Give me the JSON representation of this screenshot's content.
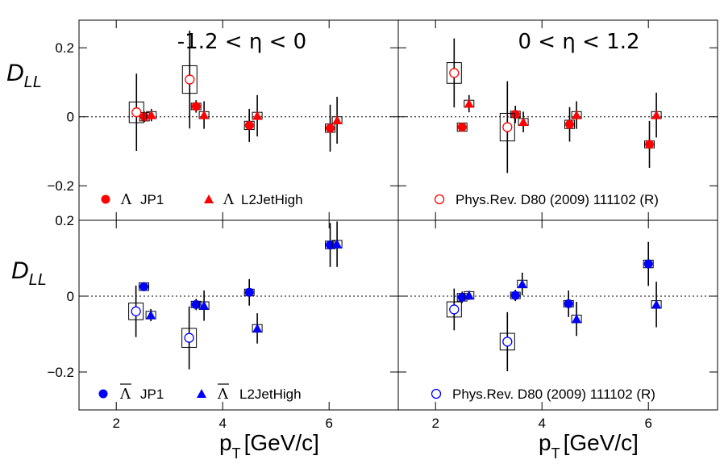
{
  "chart_data": {
    "type": "scatter",
    "y_axis_label": "D",
    "y_axis_label_sub": "LL",
    "x_axis_label": "p",
    "x_axis_label_sub": "T",
    "x_axis_unit": "[GeV/c]",
    "xlim": [
      1.3,
      7.3
    ],
    "x_ticks": [
      2,
      4,
      6
    ],
    "y_ticks": [
      -0.2,
      0,
      0.2
    ],
    "y_tick_labels": [
      "−0.2",
      "0",
      "0.2"
    ],
    "eta_ranges": [
      "-1.2 < η < 0",
      "0 < η < 1.2"
    ],
    "legend": {
      "jp1_label": "JP1",
      "l2_label": "L2JetHigh",
      "lambda_symbol": "Λ",
      "prev_label": "Phys.Rev. D80 (2009) 111102 (R)"
    },
    "colors": {
      "lambda": "#ff0000",
      "antilambda": "#0000ff",
      "box": "#000000"
    },
    "panels": [
      {
        "row": "top",
        "particle": "lambda",
        "eta": "-1.2 < η < 0",
        "ylim": [
          -0.3,
          0.28
        ],
        "series": [
          {
            "name": "Λ JP1",
            "marker": "circle-filled",
            "points": [
              {
                "x": 2.53,
                "y": 0.0,
                "err": 0.015,
                "sys": 0.012
              },
              {
                "x": 3.5,
                "y": 0.03,
                "err": 0.018,
                "sys": 0.008
              },
              {
                "x": 4.5,
                "y": -0.025,
                "err": 0.048,
                "sys": 0.012
              },
              {
                "x": 6.02,
                "y": -0.033,
                "err": 0.068,
                "sys": 0.012
              }
            ]
          },
          {
            "name": "Λ L2JetHigh",
            "marker": "triangle-filled",
            "points": [
              {
                "x": 2.66,
                "y": 0.005,
                "err": 0.018,
                "sys": 0.01
              },
              {
                "x": 3.65,
                "y": 0.005,
                "err": 0.04,
                "sys": 0.01
              },
              {
                "x": 4.65,
                "y": 0.003,
                "err": 0.06,
                "sys": 0.01
              },
              {
                "x": 6.15,
                "y": -0.01,
                "err": 0.068,
                "sys": 0.01
              }
            ]
          },
          {
            "name": "Phys.Rev. D80 (2009) 111102 (R)",
            "marker": "circle-open",
            "points": [
              {
                "x": 2.38,
                "y": 0.013,
                "err": 0.112,
                "sys": 0.03
              },
              {
                "x": 3.38,
                "y": 0.108,
                "err": 0.142,
                "sys": 0.04
              }
            ]
          }
        ]
      },
      {
        "row": "top",
        "particle": "lambda",
        "eta": "0 < η < 1.2",
        "ylim": [
          -0.3,
          0.28
        ],
        "series": [
          {
            "name": "Λ JP1",
            "marker": "circle-filled",
            "points": [
              {
                "x": 2.5,
                "y": -0.03,
                "err": 0.012,
                "sys": 0.012
              },
              {
                "x": 3.5,
                "y": 0.007,
                "err": 0.025,
                "sys": 0.008
              },
              {
                "x": 4.52,
                "y": -0.022,
                "err": 0.05,
                "sys": 0.012
              },
              {
                "x": 6.02,
                "y": -0.08,
                "err": 0.068,
                "sys": 0.01
              }
            ]
          },
          {
            "name": "Λ L2JetHigh",
            "marker": "triangle-filled",
            "points": [
              {
                "x": 2.63,
                "y": 0.038,
                "err": 0.025,
                "sys": 0.01
              },
              {
                "x": 3.65,
                "y": -0.015,
                "err": 0.03,
                "sys": 0.01
              },
              {
                "x": 4.65,
                "y": 0.005,
                "err": 0.04,
                "sys": 0.01
              },
              {
                "x": 6.15,
                "y": 0.005,
                "err": 0.065,
                "sys": 0.01
              }
            ]
          },
          {
            "name": "Phys.Rev. D80 (2009) 111102 (R)",
            "marker": "circle-open",
            "points": [
              {
                "x": 2.35,
                "y": 0.127,
                "err": 0.1,
                "sys": 0.03
              },
              {
                "x": 3.35,
                "y": -0.03,
                "err": 0.133,
                "sys": 0.04
              }
            ]
          }
        ]
      },
      {
        "row": "bottom",
        "particle": "antilambda",
        "eta": "-1.2 < η < 0",
        "ylim": [
          -0.3,
          0.2
        ],
        "series": [
          {
            "name": "anti-Λ JP1",
            "marker": "circle-filled",
            "points": [
              {
                "x": 2.52,
                "y": 0.025,
                "err": 0.012,
                "sys": 0.01
              },
              {
                "x": 3.5,
                "y": -0.022,
                "err": 0.015,
                "sys": 0.008
              },
              {
                "x": 4.5,
                "y": 0.01,
                "err": 0.035,
                "sys": 0.008
              },
              {
                "x": 6.02,
                "y": 0.135,
                "err": 0.058,
                "sys": 0.01
              }
            ]
          },
          {
            "name": "anti-Λ L2JetHigh",
            "marker": "triangle-filled",
            "points": [
              {
                "x": 2.65,
                "y": -0.05,
                "err": 0.016,
                "sys": 0.01
              },
              {
                "x": 3.65,
                "y": -0.025,
                "err": 0.04,
                "sys": 0.01
              },
              {
                "x": 4.65,
                "y": -0.085,
                "err": 0.04,
                "sys": 0.01
              },
              {
                "x": 6.15,
                "y": 0.137,
                "err": 0.06,
                "sys": 0.01
              }
            ]
          },
          {
            "name": "Phys.Rev. D80 (2009) 111102 (R)",
            "marker": "circle-open",
            "points": [
              {
                "x": 2.37,
                "y": -0.04,
                "err": 0.068,
                "sys": 0.022
              },
              {
                "x": 3.37,
                "y": -0.11,
                "err": 0.083,
                "sys": 0.025
              }
            ]
          }
        ]
      },
      {
        "row": "bottom",
        "particle": "antilambda",
        "eta": "0 < η < 1.2",
        "ylim": [
          -0.3,
          0.2
        ],
        "series": [
          {
            "name": "anti-Λ JP1",
            "marker": "circle-filled",
            "points": [
              {
                "x": 2.5,
                "y": -0.003,
                "err": 0.015,
                "sys": 0.01
              },
              {
                "x": 3.5,
                "y": 0.002,
                "err": 0.015,
                "sys": 0.006
              },
              {
                "x": 4.5,
                "y": -0.02,
                "err": 0.035,
                "sys": 0.008
              },
              {
                "x": 6.0,
                "y": 0.085,
                "err": 0.058,
                "sys": 0.01
              }
            ]
          },
          {
            "name": "anti-Λ L2JetHigh",
            "marker": "triangle-filled",
            "points": [
              {
                "x": 2.63,
                "y": 0.002,
                "err": 0.012,
                "sys": 0.01
              },
              {
                "x": 3.63,
                "y": 0.032,
                "err": 0.03,
                "sys": 0.01
              },
              {
                "x": 4.65,
                "y": -0.06,
                "err": 0.045,
                "sys": 0.01
              },
              {
                "x": 6.15,
                "y": -0.022,
                "err": 0.06,
                "sys": 0.01
              }
            ]
          },
          {
            "name": "Phys.Rev. D80 (2009) 111102 (R)",
            "marker": "circle-open",
            "points": [
              {
                "x": 2.35,
                "y": -0.035,
                "err": 0.055,
                "sys": 0.02
              },
              {
                "x": 3.35,
                "y": -0.12,
                "err": 0.078,
                "sys": 0.022
              }
            ]
          }
        ]
      }
    ]
  }
}
